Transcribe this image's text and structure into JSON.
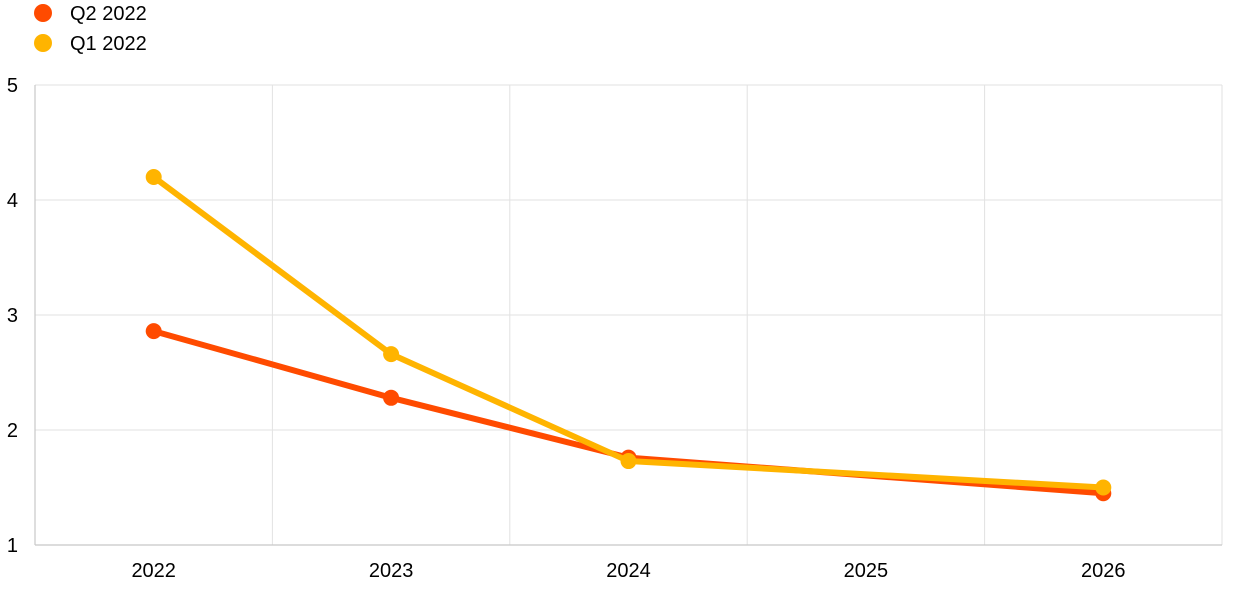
{
  "chart_data": {
    "type": "line",
    "title": "",
    "xlabel": "",
    "ylabel": "",
    "categories": [
      "2022",
      "2023",
      "2024",
      "2025",
      "2026"
    ],
    "ylim": [
      1,
      5
    ],
    "yticks": [
      1,
      2,
      3,
      4,
      5
    ],
    "grid": true,
    "legend_position": "top-left",
    "series": [
      {
        "name": "Q2 2022",
        "color": "#ff4b00",
        "values": [
          2.86,
          2.28,
          1.76,
          null,
          1.45
        ]
      },
      {
        "name": "Q1 2022",
        "color": "#ffb400",
        "values": [
          4.2,
          2.66,
          1.73,
          null,
          1.5
        ]
      }
    ]
  }
}
